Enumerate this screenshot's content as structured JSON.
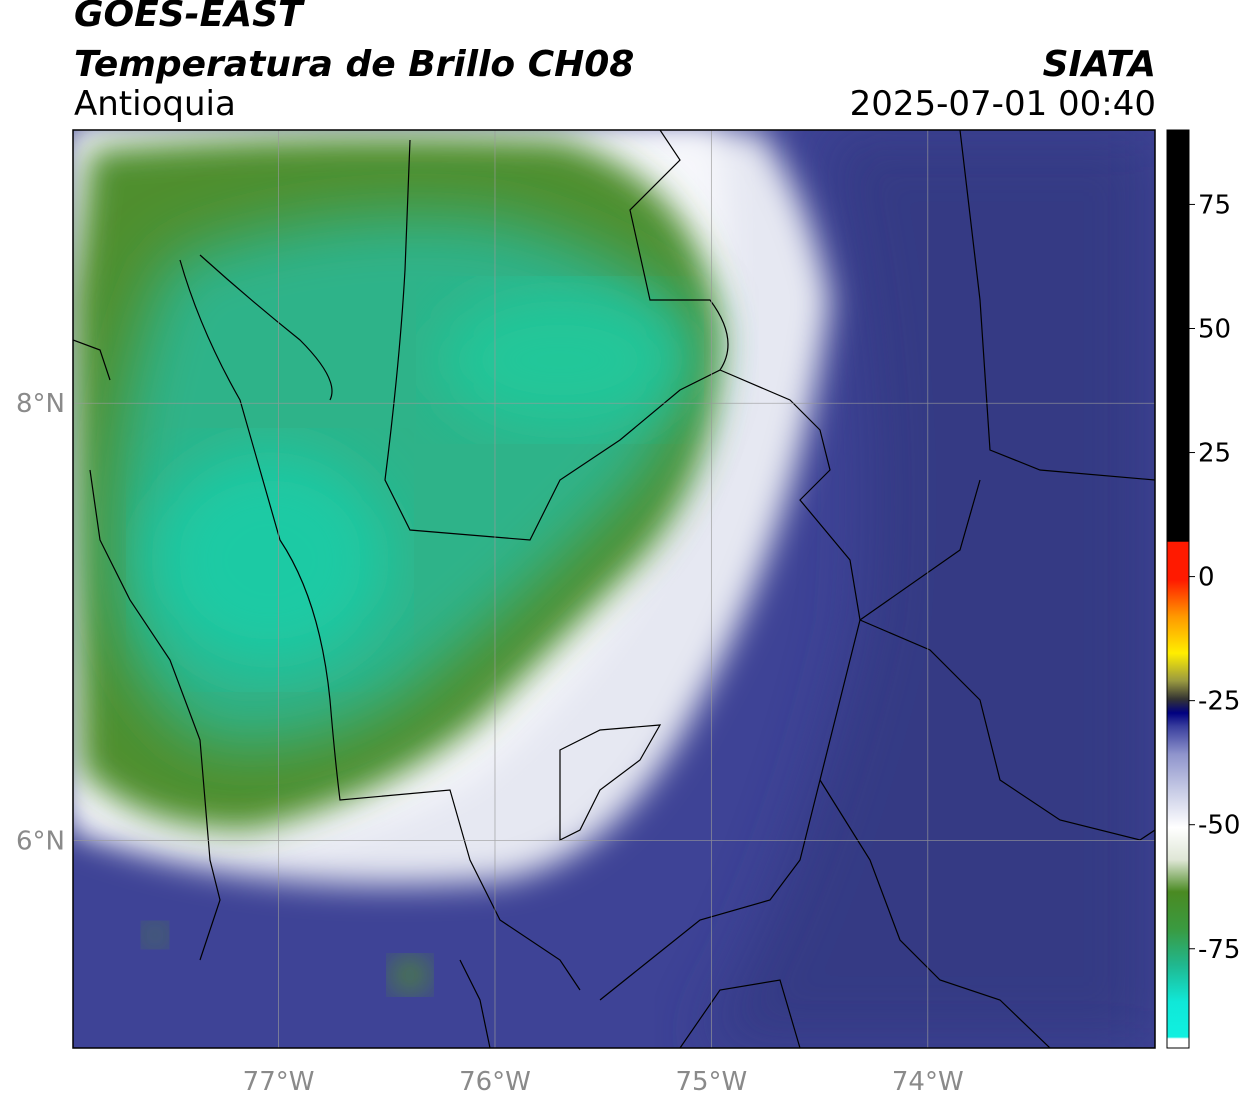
{
  "header": {
    "satellite": "GOES-EAST",
    "product": "Temperatura de Brillo CH08",
    "region": "Antioquia",
    "organization": "SIATA",
    "datetime": "2025-07-01 00:40"
  },
  "map": {
    "lon_range": [
      -77.95,
      -72.95
    ],
    "lat_range": [
      5.05,
      9.25
    ],
    "x_ticks": [
      {
        "value": -77,
        "label": "77°W"
      },
      {
        "value": -76,
        "label": "76°W"
      },
      {
        "value": -75,
        "label": "75°W"
      },
      {
        "value": -74,
        "label": "74°W"
      }
    ],
    "y_ticks": [
      {
        "value": 8,
        "label": "8°N"
      },
      {
        "value": 6,
        "label": "6°N"
      }
    ],
    "grid": true
  },
  "colorbar": {
    "range": [
      -95,
      90
    ],
    "ticks": [
      {
        "value": 75,
        "label": "75"
      },
      {
        "value": 50,
        "label": "50"
      },
      {
        "value": 25,
        "label": "25"
      },
      {
        "value": 0,
        "label": "0"
      },
      {
        "value": -25,
        "label": "-25"
      },
      {
        "value": -50,
        "label": "-50"
      },
      {
        "value": -75,
        "label": "-75"
      }
    ],
    "colors": {
      "black": "#000000",
      "red": "#ff1a00",
      "yellow": "#ffee00",
      "navy": "#000080",
      "blue": "#3a3f9e",
      "white": "#ffffff",
      "green": "#3b8a22",
      "cyan": "#10f0e0"
    }
  },
  "field_colors": {
    "cold_green": "#4a8a2a",
    "cold_teal": "#22c89a",
    "mid_white": "#f2f2f6",
    "warm_blue": "#3a3f95",
    "dark_blue": "#2e2f80"
  }
}
